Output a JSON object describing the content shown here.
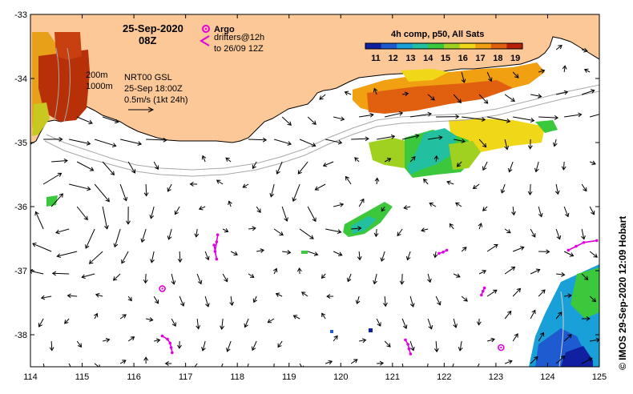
{
  "map": {
    "date": "25-Sep-2020",
    "hour": "08Z",
    "argo": {
      "label": "Argo",
      "drifters_label": "drifters@12h",
      "drifters_range": "to 26/09 12Z",
      "color": "#e000e0"
    },
    "contours": {
      "c1": "200m",
      "c2": "1000m"
    },
    "product": {
      "name": "NRT00 GSL",
      "time": "25-Sep 18:00Z",
      "scale": "0.5m/s (1kt 24h)"
    },
    "colorbar": {
      "title": "4h comp, p50, All Sats",
      "ticks": [
        "11",
        "12",
        "13",
        "14",
        "15",
        "16",
        "17",
        "18",
        "19"
      ],
      "colors": [
        "#1020a0",
        "#1e5ad0",
        "#1aa0d8",
        "#22c0a0",
        "#3cc83c",
        "#a0d020",
        "#f0d818",
        "#f0a010",
        "#e06010",
        "#b82008"
      ]
    },
    "credit": "©  IMOS 29-Sep-2020 12:09 Hobart",
    "axes": {
      "x_ticks": [
        "114",
        "115",
        "116",
        "117",
        "118",
        "119",
        "120",
        "121",
        "122",
        "123",
        "124",
        "125"
      ],
      "y_ticks": [
        "-33",
        "-34",
        "-35",
        "-36",
        "-37",
        "-38"
      ],
      "lon_range": [
        114,
        125
      ],
      "lat_range": [
        -33,
        -38.5
      ]
    },
    "land_color": "#fcc898",
    "drifter_tracks": [
      {
        "name": "drifter-1",
        "pts": [
          [
            116.55,
            -37.28
          ]
        ]
      },
      {
        "name": "drifter-2",
        "pts": [
          [
            117.62,
            -36.44
          ],
          [
            117.6,
            -36.55
          ],
          [
            117.57,
            -36.7
          ],
          [
            117.6,
            -36.82
          ],
          [
            117.55,
            -36.6
          ]
        ]
      },
      {
        "name": "drifter-3",
        "pts": [
          [
            116.55,
            -38.02
          ],
          [
            116.65,
            -38.07
          ],
          [
            116.7,
            -38.13
          ],
          [
            116.72,
            -38.2
          ],
          [
            116.74,
            -38.28
          ]
        ]
      },
      {
        "name": "drifter-4",
        "pts": [
          [
            121.25,
            -38.08
          ],
          [
            121.3,
            -38.15
          ],
          [
            121.32,
            -38.22
          ],
          [
            121.35,
            -38.3
          ]
        ]
      },
      {
        "name": "drifter-5",
        "pts": [
          [
            121.9,
            -36.73
          ],
          [
            121.98,
            -36.71
          ],
          [
            122.05,
            -36.68
          ]
        ]
      },
      {
        "name": "drifter-6",
        "pts": [
          [
            122.78,
            -37.27
          ],
          [
            122.75,
            -37.32
          ],
          [
            122.72,
            -37.38
          ]
        ]
      },
      {
        "name": "drifter-7",
        "pts": [
          [
            123.1,
            -38.2
          ]
        ]
      },
      {
        "name": "drifter-8",
        "pts": [
          [
            124.4,
            -36.68
          ],
          [
            124.55,
            -36.62
          ],
          [
            124.7,
            -36.56
          ],
          [
            124.95,
            -36.53
          ]
        ]
      }
    ]
  }
}
